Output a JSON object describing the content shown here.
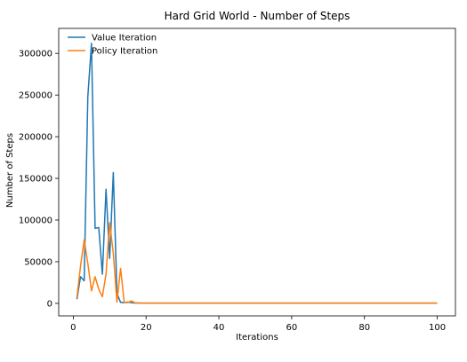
{
  "chart_data": {
    "type": "line",
    "title": "Hard Grid World - Number of Steps",
    "xlabel": "Iterations",
    "ylabel": "Number of Steps",
    "xlim": [
      -4,
      105
    ],
    "ylim": [
      -15000,
      330000
    ],
    "xticks": [
      0,
      20,
      40,
      60,
      80,
      100
    ],
    "yticks": [
      0,
      50000,
      100000,
      150000,
      200000,
      250000,
      300000
    ],
    "grid": false,
    "legend": "top-left",
    "series": [
      {
        "name": "Value Iteration",
        "color": "#1f77b4",
        "x": [
          1,
          2,
          3,
          4,
          5,
          6,
          7,
          8,
          9,
          10,
          11,
          12,
          13,
          14,
          15,
          16,
          17,
          18,
          19,
          20,
          25,
          30,
          40,
          50,
          60,
          70,
          80,
          90,
          100
        ],
        "y": [
          5000,
          32000,
          27000,
          248000,
          312000,
          90000,
          91000,
          35000,
          137000,
          54000,
          157000,
          12000,
          1200,
          800,
          1500,
          800,
          500,
          400,
          300,
          300,
          300,
          300,
          300,
          300,
          300,
          300,
          300,
          300,
          300
        ]
      },
      {
        "name": "Policy Iteration",
        "color": "#ff7f0e",
        "x": [
          1,
          2,
          3,
          4,
          5,
          6,
          7,
          8,
          9,
          10,
          11,
          12,
          13,
          14,
          15,
          16,
          17,
          18,
          19,
          20,
          25,
          30,
          40,
          50,
          60,
          70,
          80,
          90,
          100
        ],
        "y": [
          7000,
          45000,
          76000,
          48000,
          15000,
          32000,
          17000,
          8000,
          35000,
          97000,
          60000,
          1500,
          42000,
          1200,
          800,
          3000,
          600,
          400,
          300,
          300,
          300,
          300,
          300,
          300,
          300,
          300,
          300,
          300,
          300
        ]
      }
    ]
  }
}
